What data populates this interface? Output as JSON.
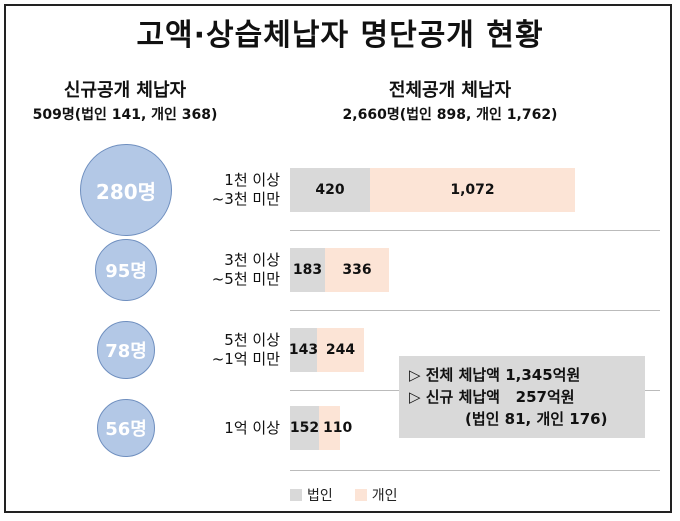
{
  "title": "고액·상습체납자 명단공개 현황",
  "new_disclosure": {
    "heading": "신규공개 체납자",
    "subheading": "509명(법인 141, 개인 368)"
  },
  "total_disclosure": {
    "heading": "전체공개 체납자",
    "subheading": "2,660명(법인 898, 개인 1,762)"
  },
  "info_box": {
    "line1": "▷ 전체 체납액 1,345억원",
    "line2": "▷ 신규 체납액   257억원",
    "line3": "(법인 81, 개인 176)"
  },
  "colors": {
    "corp": "#d9d9d9",
    "indiv": "#fce4d6",
    "circle": "#b3c8e6"
  },
  "chart_data": {
    "type": "bar",
    "orientation": "horizontal",
    "stacked": true,
    "categories": [
      "1천 이상\n~3천 미만",
      "3천 이상\n~5천 미만",
      "5천 이상\n~1억 미만",
      "1억 이상"
    ],
    "category_lines": [
      [
        "1천 이상",
        "~3천 미만"
      ],
      [
        "3천 이상",
        "~5천 미만"
      ],
      [
        "5천 이상",
        "~1억 미만"
      ],
      [
        "1억 이상"
      ]
    ],
    "series": [
      {
        "name": "법인",
        "values": [
          420,
          183,
          143,
          152
        ],
        "labels": [
          "420",
          "183",
          "143",
          "152"
        ]
      },
      {
        "name": "개인",
        "values": [
          1072,
          336,
          244,
          110
        ],
        "labels": [
          "1,072",
          "336",
          "244",
          "110"
        ]
      }
    ],
    "new_counts": [
      280,
      95,
      78,
      56
    ],
    "new_count_labels": [
      "280명",
      "95명",
      "78명",
      "56명"
    ],
    "legend": [
      "법인",
      "개인"
    ],
    "legend_position": "bottom"
  }
}
